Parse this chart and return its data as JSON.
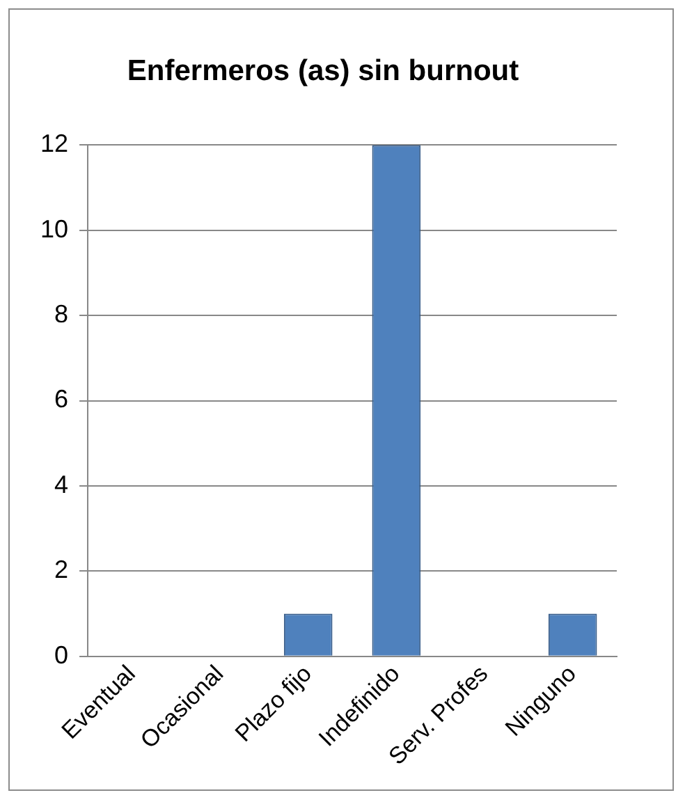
{
  "chart_data": {
    "type": "bar",
    "title": "Enfermeros (as) sin burnout",
    "categories": [
      "Eventual",
      "Ocasional",
      "Plazo fijo",
      "Indefinido",
      "Serv. Profes",
      "Ninguno"
    ],
    "values": [
      0,
      0,
      1,
      12,
      0,
      1
    ],
    "color": "#4f81bd",
    "ylim": [
      0,
      12
    ],
    "yticks": [
      0,
      2,
      4,
      6,
      8,
      10,
      12
    ],
    "grid": "y",
    "legend": false
  }
}
